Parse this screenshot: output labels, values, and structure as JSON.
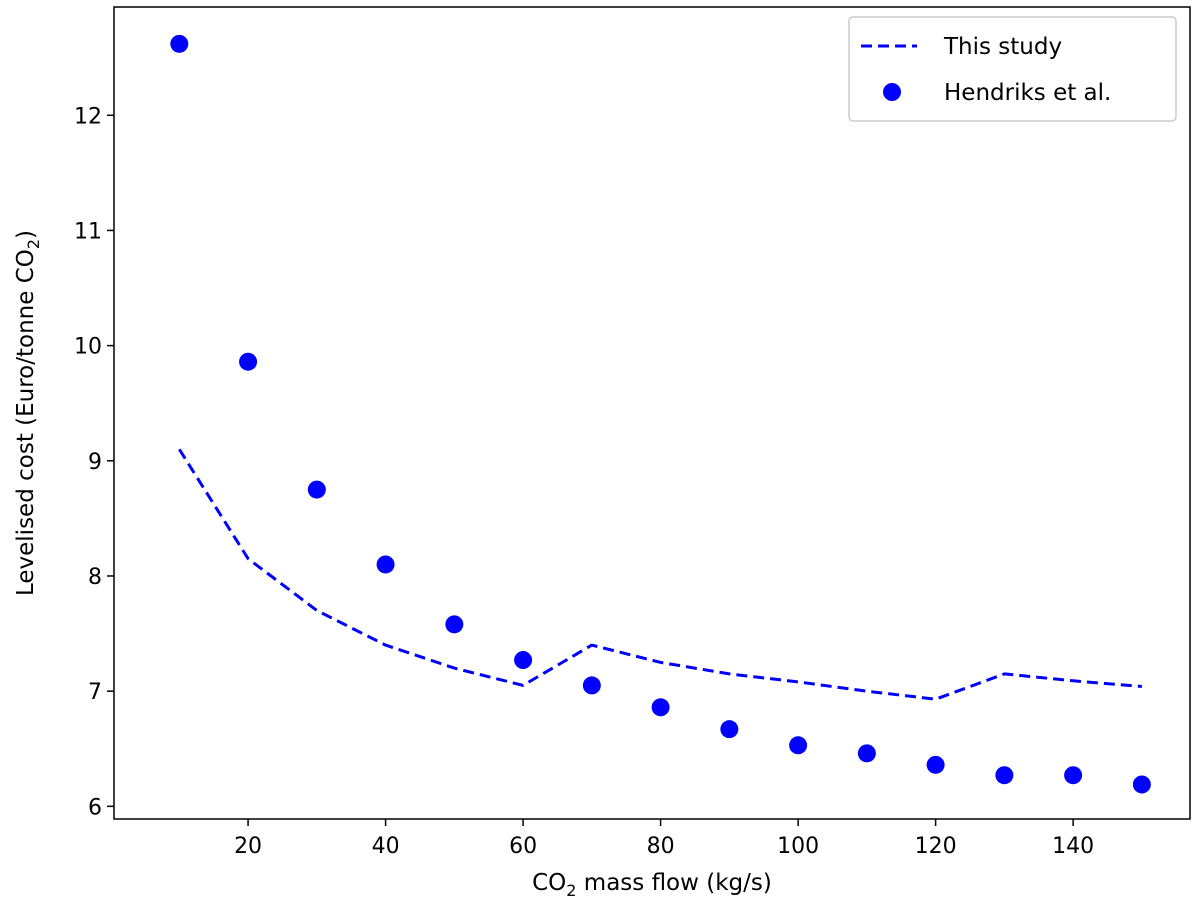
{
  "chart_data": {
    "type": "line",
    "xlabel": {
      "main": "CO",
      "sub": "2",
      "rest": " mass flow (kg/s)"
    },
    "ylabel": {
      "pre": "Levelised cost (Euro/tonne CO",
      "sub": "2",
      "post": ")"
    },
    "xticks": [
      20,
      40,
      60,
      80,
      100,
      120,
      140
    ],
    "yticks": [
      6,
      7,
      8,
      9,
      10,
      11,
      12
    ],
    "xlim": [
      0.5,
      157
    ],
    "ylim": [
      5.89,
      12.94
    ],
    "grid": false,
    "legend_position": "top-right",
    "colors": {
      "series": "#0000ff",
      "axes": "#000000"
    },
    "series": [
      {
        "name": "This study",
        "style": "dashed-line",
        "x": [
          10,
          20,
          30,
          40,
          50,
          60,
          70,
          80,
          90,
          100,
          110,
          120,
          130,
          140,
          150
        ],
        "y": [
          9.1,
          8.15,
          7.7,
          7.4,
          7.2,
          7.05,
          7.4,
          7.25,
          7.15,
          7.08,
          7.0,
          6.93,
          7.15,
          7.09,
          7.04
        ]
      },
      {
        "name": "Hendriks et al.",
        "style": "markers",
        "x": [
          10,
          20,
          30,
          40,
          50,
          60,
          70,
          80,
          90,
          100,
          110,
          120,
          130,
          140,
          150
        ],
        "y": [
          12.62,
          9.86,
          8.75,
          8.1,
          7.58,
          7.27,
          7.05,
          6.86,
          6.67,
          6.53,
          6.46,
          6.36,
          6.27,
          6.27,
          6.19
        ]
      }
    ]
  }
}
